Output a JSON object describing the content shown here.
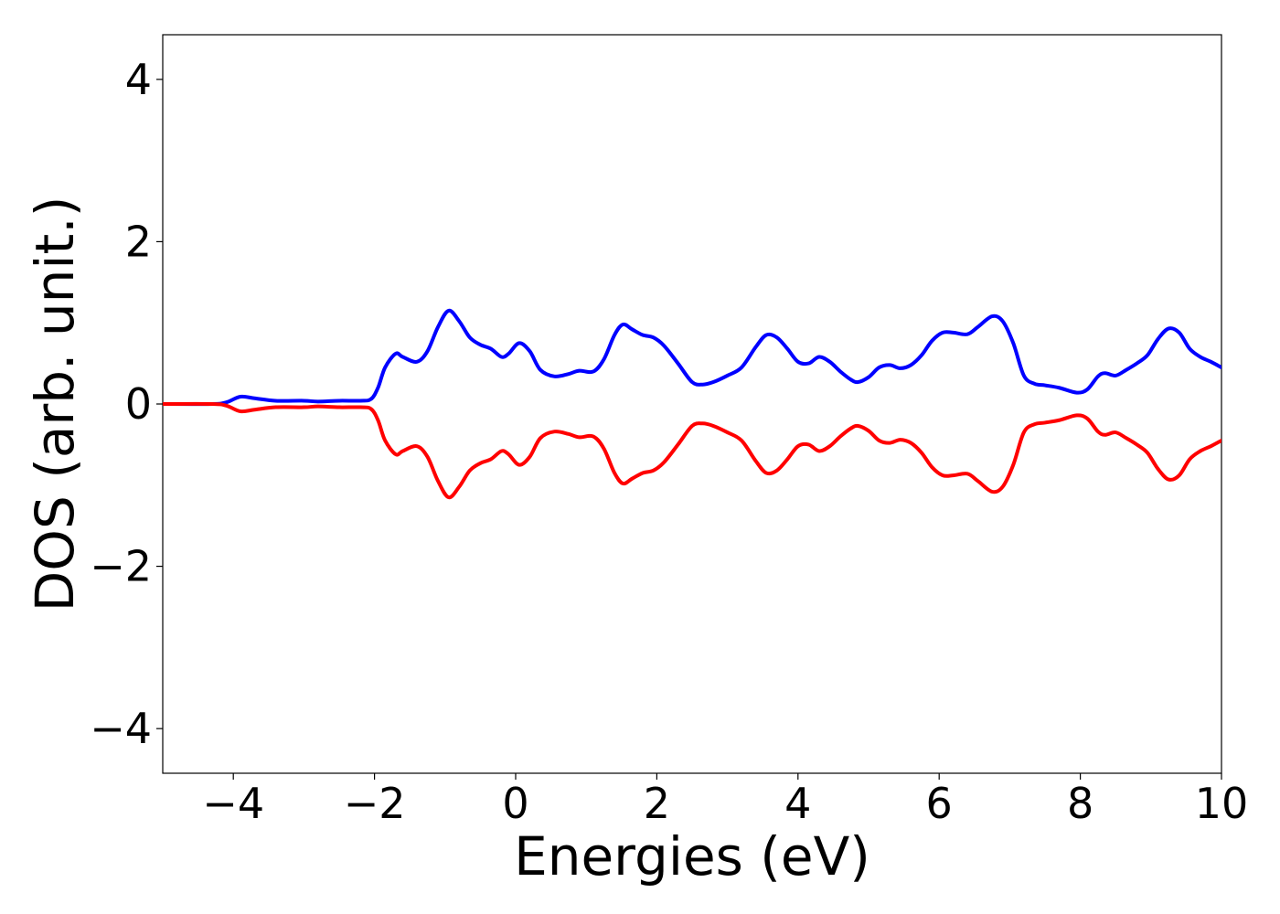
{
  "chart_data": {
    "type": "line",
    "title": "",
    "xlabel": "Energies (eV)",
    "ylabel": "DOS (arb. unit.)",
    "xlim": [
      -5,
      10
    ],
    "ylim": [
      -4.55,
      4.55
    ],
    "x_ticks": [
      -4,
      -2,
      0,
      2,
      4,
      6,
      8,
      10
    ],
    "x_tick_labels": [
      "−4",
      "−2",
      "0",
      "2",
      "4",
      "6",
      "8",
      "10"
    ],
    "y_ticks": [
      -4,
      -2,
      0,
      2,
      4
    ],
    "y_tick_labels": [
      "−4",
      "−2",
      "0",
      "2",
      "4"
    ],
    "grid": false,
    "legend": "none",
    "series": [
      {
        "color": "#0000ff",
        "x": [
          -5.0,
          -4.3,
          -4.1,
          -3.9,
          -3.7,
          -3.4,
          -3.0,
          -2.8,
          -2.5,
          -2.2,
          -2.05,
          -1.95,
          -1.85,
          -1.7,
          -1.6,
          -1.4,
          -1.25,
          -1.1,
          -0.95,
          -0.8,
          -0.65,
          -0.5,
          -0.35,
          -0.2,
          -0.1,
          0.05,
          0.2,
          0.35,
          0.55,
          0.75,
          0.9,
          1.1,
          1.25,
          1.4,
          1.52,
          1.65,
          1.8,
          1.95,
          2.1,
          2.3,
          2.5,
          2.65,
          2.8,
          3.0,
          3.2,
          3.4,
          3.55,
          3.7,
          3.85,
          4.0,
          4.15,
          4.3,
          4.45,
          4.6,
          4.75,
          4.85,
          5.0,
          5.15,
          5.3,
          5.45,
          5.6,
          5.75,
          5.9,
          6.05,
          6.2,
          6.4,
          6.55,
          6.75,
          6.9,
          7.05,
          7.2,
          7.35,
          7.5,
          7.7,
          7.95,
          8.1,
          8.25,
          8.35,
          8.5,
          8.65,
          8.8,
          8.95,
          9.1,
          9.25,
          9.4,
          9.55,
          9.7,
          9.85,
          10.0
        ],
        "y": [
          0.0,
          0.0,
          0.02,
          0.09,
          0.07,
          0.04,
          0.04,
          0.03,
          0.04,
          0.04,
          0.06,
          0.2,
          0.45,
          0.62,
          0.58,
          0.52,
          0.65,
          0.95,
          1.15,
          1.02,
          0.82,
          0.73,
          0.68,
          0.58,
          0.62,
          0.75,
          0.65,
          0.42,
          0.34,
          0.37,
          0.41,
          0.4,
          0.55,
          0.85,
          0.98,
          0.92,
          0.85,
          0.82,
          0.72,
          0.5,
          0.27,
          0.24,
          0.27,
          0.35,
          0.45,
          0.7,
          0.85,
          0.82,
          0.68,
          0.52,
          0.5,
          0.58,
          0.52,
          0.4,
          0.3,
          0.27,
          0.33,
          0.45,
          0.48,
          0.44,
          0.48,
          0.6,
          0.78,
          0.88,
          0.88,
          0.86,
          0.95,
          1.08,
          1.02,
          0.75,
          0.35,
          0.25,
          0.23,
          0.2,
          0.14,
          0.18,
          0.34,
          0.38,
          0.35,
          0.42,
          0.5,
          0.6,
          0.8,
          0.93,
          0.88,
          0.68,
          0.58,
          0.52,
          0.45
        ]
      },
      {
        "color": "#ff0000",
        "x": [
          -5.0,
          -4.3,
          -4.1,
          -3.9,
          -3.7,
          -3.4,
          -3.0,
          -2.8,
          -2.5,
          -2.2,
          -2.05,
          -1.95,
          -1.85,
          -1.7,
          -1.6,
          -1.4,
          -1.25,
          -1.1,
          -0.95,
          -0.8,
          -0.65,
          -0.5,
          -0.35,
          -0.2,
          -0.1,
          0.05,
          0.2,
          0.35,
          0.55,
          0.75,
          0.9,
          1.1,
          1.25,
          1.4,
          1.52,
          1.65,
          1.8,
          1.95,
          2.1,
          2.3,
          2.5,
          2.65,
          2.8,
          3.0,
          3.2,
          3.4,
          3.55,
          3.7,
          3.85,
          4.0,
          4.15,
          4.3,
          4.45,
          4.6,
          4.75,
          4.85,
          5.0,
          5.15,
          5.3,
          5.45,
          5.6,
          5.75,
          5.9,
          6.05,
          6.2,
          6.4,
          6.55,
          6.75,
          6.9,
          7.05,
          7.2,
          7.35,
          7.5,
          7.7,
          7.95,
          8.1,
          8.25,
          8.35,
          8.5,
          8.65,
          8.8,
          8.95,
          9.1,
          9.25,
          9.4,
          9.55,
          9.7,
          9.85,
          10.0
        ],
        "y": [
          0.0,
          0.0,
          -0.02,
          -0.09,
          -0.07,
          -0.04,
          -0.04,
          -0.03,
          -0.04,
          -0.04,
          -0.06,
          -0.2,
          -0.45,
          -0.62,
          -0.58,
          -0.52,
          -0.65,
          -0.95,
          -1.15,
          -1.02,
          -0.82,
          -0.73,
          -0.68,
          -0.58,
          -0.62,
          -0.75,
          -0.65,
          -0.42,
          -0.34,
          -0.37,
          -0.41,
          -0.4,
          -0.55,
          -0.85,
          -0.98,
          -0.92,
          -0.85,
          -0.82,
          -0.72,
          -0.5,
          -0.27,
          -0.24,
          -0.27,
          -0.35,
          -0.45,
          -0.7,
          -0.85,
          -0.82,
          -0.68,
          -0.52,
          -0.5,
          -0.58,
          -0.52,
          -0.4,
          -0.3,
          -0.27,
          -0.33,
          -0.45,
          -0.48,
          -0.44,
          -0.48,
          -0.6,
          -0.78,
          -0.88,
          -0.88,
          -0.86,
          -0.95,
          -1.08,
          -1.02,
          -0.75,
          -0.35,
          -0.25,
          -0.23,
          -0.2,
          -0.14,
          -0.18,
          -0.34,
          -0.38,
          -0.35,
          -0.42,
          -0.5,
          -0.6,
          -0.8,
          -0.93,
          -0.88,
          -0.68,
          -0.58,
          -0.52,
          -0.45
        ]
      }
    ]
  }
}
